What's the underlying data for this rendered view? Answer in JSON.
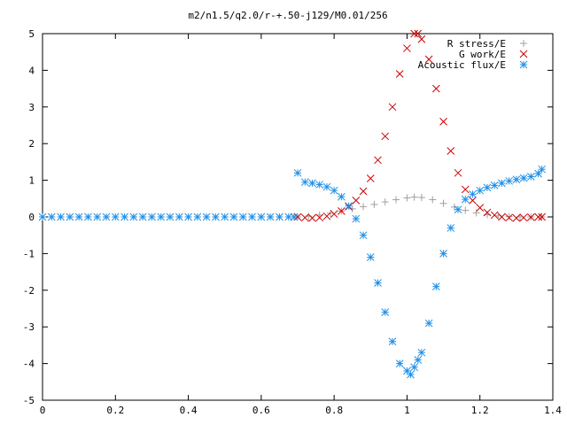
{
  "chart_data": {
    "type": "scatter",
    "title": "m2/n1.5/q2.0/r-+.50-j129/M0.01/256",
    "xlabel": "",
    "ylabel": "",
    "xlim": [
      0,
      1.4
    ],
    "ylim": [
      -5,
      5
    ],
    "xticks": [
      "0",
      "0.2",
      "0.4",
      "0.6",
      "0.8",
      "1",
      "1.2",
      "1.4"
    ],
    "yticks": [
      "5",
      "4",
      "3",
      "2",
      "1",
      "0",
      "-1",
      "-2",
      "-3",
      "-4",
      "-5"
    ],
    "grid": false,
    "legend_position": "top-right",
    "series": [
      {
        "name": "R stress/E",
        "marker": "plus",
        "color": "#a0a0a0",
        "x": [
          0.7,
          0.73,
          0.76,
          0.79,
          0.82,
          0.85,
          0.88,
          0.91,
          0.94,
          0.97,
          1.0,
          1.02,
          1.04,
          1.07,
          1.1,
          1.13,
          1.16,
          1.19,
          1.22,
          1.25,
          1.28,
          1.31,
          1.34,
          1.37
        ],
        "y": [
          0.0,
          0.02,
          0.05,
          0.1,
          0.16,
          0.22,
          0.28,
          0.34,
          0.41,
          0.47,
          0.52,
          0.54,
          0.53,
          0.47,
          0.37,
          0.27,
          0.18,
          0.11,
          0.06,
          0.03,
          0.01,
          0.0,
          0.0,
          0.0
        ]
      },
      {
        "name": "G work/E",
        "marker": "cross",
        "color": "#cc0000",
        "x": [
          0.7,
          0.72,
          0.74,
          0.76,
          0.78,
          0.8,
          0.82,
          0.84,
          0.86,
          0.88,
          0.9,
          0.92,
          0.94,
          0.96,
          0.98,
          1.0,
          1.02,
          1.03,
          1.04,
          1.06,
          1.08,
          1.1,
          1.12,
          1.14,
          1.16,
          1.18,
          1.2,
          1.22,
          1.24,
          1.26,
          1.28,
          1.3,
          1.32,
          1.34,
          1.36,
          1.37
        ],
        "y": [
          0.0,
          -0.02,
          -0.03,
          -0.02,
          0.02,
          0.08,
          0.16,
          0.28,
          0.45,
          0.7,
          1.05,
          1.55,
          2.2,
          3.0,
          3.9,
          4.6,
          5.0,
          5.0,
          4.85,
          4.3,
          3.5,
          2.6,
          1.8,
          1.2,
          0.75,
          0.45,
          0.25,
          0.12,
          0.05,
          0.0,
          -0.02,
          -0.03,
          -0.02,
          -0.01,
          0.0,
          0.0
        ]
      },
      {
        "name": "Acoustic flux/E",
        "marker": "star",
        "color": "#1e8fe8",
        "x": [
          0.0,
          0.025,
          0.05,
          0.075,
          0.1,
          0.125,
          0.15,
          0.175,
          0.2,
          0.225,
          0.25,
          0.275,
          0.3,
          0.325,
          0.35,
          0.375,
          0.4,
          0.425,
          0.45,
          0.475,
          0.5,
          0.525,
          0.55,
          0.575,
          0.6,
          0.625,
          0.65,
          0.675,
          0.69,
          0.7,
          0.72,
          0.74,
          0.76,
          0.78,
          0.8,
          0.82,
          0.84,
          0.86,
          0.88,
          0.9,
          0.92,
          0.94,
          0.96,
          0.98,
          1.0,
          1.01,
          1.02,
          1.03,
          1.04,
          1.06,
          1.08,
          1.1,
          1.12,
          1.14,
          1.16,
          1.18,
          1.2,
          1.22,
          1.24,
          1.26,
          1.28,
          1.3,
          1.32,
          1.34,
          1.36,
          1.37
        ],
        "y": [
          0.0,
          0.0,
          0.0,
          0.0,
          0.0,
          0.0,
          0.0,
          0.0,
          0.0,
          0.0,
          0.0,
          0.0,
          0.0,
          0.0,
          0.0,
          0.0,
          0.0,
          0.0,
          0.0,
          0.0,
          0.0,
          0.0,
          0.0,
          0.0,
          0.0,
          0.0,
          0.0,
          0.0,
          0.0,
          1.2,
          0.95,
          0.92,
          0.88,
          0.82,
          0.72,
          0.55,
          0.3,
          -0.05,
          -0.5,
          -1.1,
          -1.8,
          -2.6,
          -3.4,
          -4.0,
          -4.2,
          -4.3,
          -4.1,
          -3.9,
          -3.7,
          -2.9,
          -1.9,
          -1.0,
          -0.3,
          0.2,
          0.48,
          0.62,
          0.72,
          0.8,
          0.86,
          0.92,
          0.98,
          1.02,
          1.06,
          1.1,
          1.18,
          1.3
        ]
      }
    ]
  }
}
